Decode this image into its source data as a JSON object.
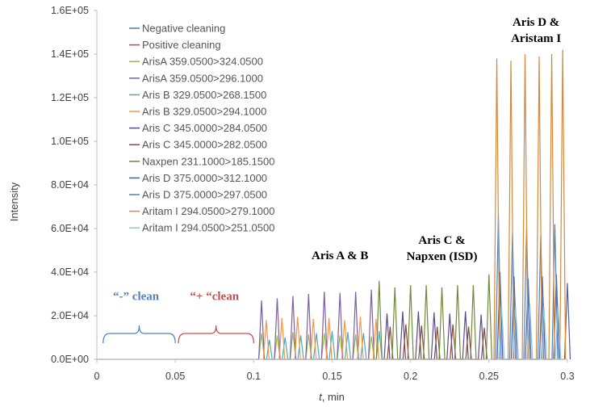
{
  "chart_data": {
    "type": "line",
    "title": "",
    "xlabel_italic": "t",
    "xlabel_rest": ", min",
    "ylabel": "Intensity",
    "xlim": [
      0,
      0.3
    ],
    "ylim": [
      0,
      160000
    ],
    "x_ticks": [
      0,
      0.05,
      0.1,
      0.15,
      0.2,
      0.25,
      0.3
    ],
    "x_tick_labels": [
      "0",
      "0.05",
      "0.1",
      "0.15",
      "0.2",
      "0.25",
      "0.3"
    ],
    "y_ticks": [
      0,
      20000,
      40000,
      60000,
      80000,
      100000,
      120000,
      140000,
      160000
    ],
    "y_tick_labels": [
      "0.0E+00",
      "2.0E+04",
      "4.0E+04",
      "6.0E+04",
      "8.0E+04",
      "1.0E+05",
      "1.2E+05",
      "1.4E+05",
      "1.6E+05"
    ],
    "grid": false,
    "legend_position": "top-left",
    "series": [
      {
        "name": "Negative cleaning",
        "color": "#4a7ebb",
        "peaks": []
      },
      {
        "name": "Positive cleaning",
        "color": "#be4b48",
        "peaks": []
      },
      {
        "name": "ArisA 359.0500>324.0500",
        "color": "#98b954",
        "peaks": [
          [
            0.105,
            12000
          ],
          [
            0.115,
            11000
          ],
          [
            0.125,
            12500
          ],
          [
            0.135,
            11500
          ],
          [
            0.145,
            12000
          ],
          [
            0.155,
            11000
          ],
          [
            0.165,
            11500
          ],
          [
            0.175,
            10500
          ]
        ]
      },
      {
        "name": "ArisA 359.0500>296.1000",
        "color": "#7d60a0",
        "peaks": [
          [
            0.105,
            27000
          ],
          [
            0.115,
            28000
          ],
          [
            0.125,
            29000
          ],
          [
            0.135,
            30000
          ],
          [
            0.145,
            31000
          ],
          [
            0.155,
            30500
          ],
          [
            0.165,
            31000
          ],
          [
            0.175,
            32000
          ]
        ]
      },
      {
        "name": "Aris B 329.0500>268.1500",
        "color": "#46aac5",
        "peaks": [
          [
            0.11,
            9000
          ],
          [
            0.12,
            10000
          ],
          [
            0.13,
            11000
          ],
          [
            0.14,
            12000
          ],
          [
            0.15,
            13000
          ],
          [
            0.16,
            12500
          ],
          [
            0.17,
            12000
          ],
          [
            0.18,
            13000
          ]
        ]
      },
      {
        "name": "Aris B 329.0500>294.1000",
        "color": "#f79646",
        "peaks": [
          [
            0.108,
            18000
          ],
          [
            0.118,
            19000
          ],
          [
            0.128,
            19500
          ],
          [
            0.138,
            18500
          ],
          [
            0.148,
            19000
          ],
          [
            0.158,
            18000
          ],
          [
            0.168,
            19500
          ],
          [
            0.178,
            18500
          ]
        ]
      },
      {
        "name": "Aris C 345.0000>284.0500",
        "color": "#5a4b8a",
        "peaks": [
          [
            0.185,
            21000
          ],
          [
            0.195,
            22000
          ],
          [
            0.205,
            22000
          ],
          [
            0.215,
            21500
          ],
          [
            0.225,
            21000
          ],
          [
            0.235,
            22000
          ],
          [
            0.245,
            20500
          ]
        ]
      },
      {
        "name": "Aris C 345.0000>282.0500",
        "color": "#8a4a3a",
        "peaks": [
          [
            0.187,
            15000
          ],
          [
            0.197,
            16000
          ],
          [
            0.207,
            15500
          ],
          [
            0.217,
            15000
          ],
          [
            0.227,
            16000
          ],
          [
            0.237,
            15000
          ],
          [
            0.247,
            14500
          ]
        ]
      },
      {
        "name": "Naxpen 231.1000>185.1500",
        "color": "#6e8a3a",
        "peaks": [
          [
            0.18,
            36000
          ],
          [
            0.19,
            33000
          ],
          [
            0.2,
            34000
          ],
          [
            0.21,
            34000
          ],
          [
            0.22,
            33000
          ],
          [
            0.23,
            34000
          ],
          [
            0.24,
            34000
          ],
          [
            0.25,
            39000
          ]
        ]
      },
      {
        "name": "Aris D 375.0000>312.1000",
        "color": "#4f5fa0",
        "peaks": [
          [
            0.257,
            40000
          ],
          [
            0.266,
            38000
          ],
          [
            0.275,
            37000
          ],
          [
            0.284,
            38000
          ],
          [
            0.293,
            39000
          ],
          [
            0.3,
            35000
          ]
        ]
      },
      {
        "name": "Aris D  375.0000>297.0500",
        "color": "#4f81bd",
        "peaks": [
          [
            0.256,
            66000
          ],
          [
            0.265,
            58000
          ],
          [
            0.274,
            60000
          ],
          [
            0.283,
            57000
          ],
          [
            0.292,
            62000
          ]
        ]
      },
      {
        "name": "Aritam I 294.0500>279.1000",
        "color": "#d4883a",
        "peaks": [
          [
            0.255,
            138000
          ],
          [
            0.264,
            137000
          ],
          [
            0.273,
            140000
          ],
          [
            0.282,
            139000
          ],
          [
            0.29,
            140000
          ],
          [
            0.297,
            142000
          ]
        ]
      },
      {
        "name": "Aritam I 294.0500>251.0500",
        "color": "#93c4d8",
        "peaks": [
          [
            0.258,
            25000
          ],
          [
            0.267,
            24000
          ],
          [
            0.276,
            25500
          ],
          [
            0.285,
            24000
          ],
          [
            0.294,
            25000
          ]
        ]
      }
    ],
    "annotations": [
      {
        "text_open": "“-”",
        "text_rest": " clean",
        "color_open": "#4f81bd",
        "color_rest": "#4f81bd",
        "x": 0.025,
        "y": 29000
      },
      {
        "text_open": "“+ “",
        "text_rest": "clean",
        "color_open": "#c0504d",
        "color_rest": "#c0504d",
        "x": 0.075,
        "y": 29000
      },
      {
        "text": "Aris A & B",
        "x": 0.155,
        "y": 46000
      },
      {
        "lines": [
          "Aris C &",
          "Napxen (ISD)"
        ],
        "x": 0.22,
        "y": 53000
      },
      {
        "lines": [
          "Aris D &",
          "Aristam I"
        ],
        "x": 0.28,
        "y": 153000
      }
    ],
    "braces": [
      {
        "x1": 0.004,
        "x2": 0.05,
        "color": "#4f81bd"
      },
      {
        "x1": 0.052,
        "x2": 0.1,
        "color": "#c0504d"
      }
    ]
  }
}
